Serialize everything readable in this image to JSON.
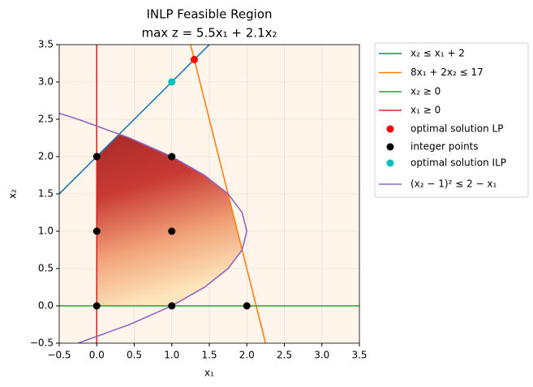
{
  "chart_data": {
    "type": "line",
    "title": "INLP Feasible Region",
    "subtitle": "max z = 5.5x₁ + 2.1x₂",
    "x_label": "x₁",
    "y_label": "x₂",
    "xlim": [
      -0.5,
      3.5
    ],
    "ylim": [
      -0.5,
      3.5
    ],
    "xticks": [
      {
        "value": -0.5,
        "label": "−0.5"
      },
      {
        "value": 0,
        "label": "0.0"
      },
      0.5,
      {
        "value": 1,
        "label": "1.0"
      },
      1.5,
      {
        "value": 2,
        "label": "2.0"
      },
      2.5,
      {
        "value": 3,
        "label": "3.0"
      },
      3.5
    ],
    "yticks": [
      {
        "value": -0.5,
        "label": "−0.5"
      },
      {
        "value": 0,
        "label": "0.0"
      },
      0.5,
      {
        "value": 1,
        "label": "1.0"
      },
      1.5,
      {
        "value": 2,
        "label": "2.0"
      },
      2.5,
      {
        "value": 3,
        "label": "3.0"
      },
      3.5
    ],
    "grid": true,
    "legend": "outside-upper-right",
    "series": [
      {
        "name": "x₂ ≤ x₁ + 2",
        "type": "line",
        "color": "#1f77b4",
        "x": [
          -0.5,
          1.5
        ],
        "values": [
          1.5,
          3.5
        ]
      },
      {
        "name": "8x₁ + 2x₂ ≤ 17",
        "type": "line",
        "color": "#ff7f0e",
        "x": [
          1.25,
          2.25
        ],
        "values": [
          3.5,
          -0.5
        ]
      },
      {
        "name": "x₂ ≥ 0",
        "type": "line",
        "color": "#2ca02c",
        "x": [
          -0.5,
          3.5
        ],
        "values": [
          0,
          0
        ]
      },
      {
        "name": "x₁ ≥ 0",
        "type": "line",
        "color": "#d62728",
        "x": [
          0,
          0
        ],
        "values": [
          -0.5,
          3.5
        ]
      },
      {
        "name": "optimal solution LP",
        "type": "scatter",
        "color": "#ff0000",
        "x": [
          1.3
        ],
        "values": [
          3.3
        ]
      },
      {
        "name": "integer points",
        "type": "scatter",
        "color": "#000000",
        "x": [
          0,
          0,
          0,
          1,
          1,
          1,
          2
        ],
        "values": [
          0,
          1,
          2,
          0,
          1,
          2,
          0
        ]
      },
      {
        "name": "optimal solution ILP",
        "type": "scatter",
        "color": "#00bfbf",
        "x": [
          1
        ],
        "values": [
          3
        ]
      },
      {
        "name": "(x₂ − 1)² ≤ 2 − x₁",
        "type": "line",
        "color": "#9467bd",
        "x": [
          -0.25,
          0.4375,
          1,
          1.4375,
          1.75,
          1.9375,
          2,
          1.9375,
          1.75,
          1.4375,
          1,
          0.4375,
          -0.25,
          -0.56
        ],
        "values": [
          -0.5,
          -0.25,
          0,
          0.25,
          0.5,
          0.75,
          1,
          1.25,
          1.5,
          1.75,
          2,
          2.25,
          2.5,
          2.6
        ]
      }
    ]
  }
}
